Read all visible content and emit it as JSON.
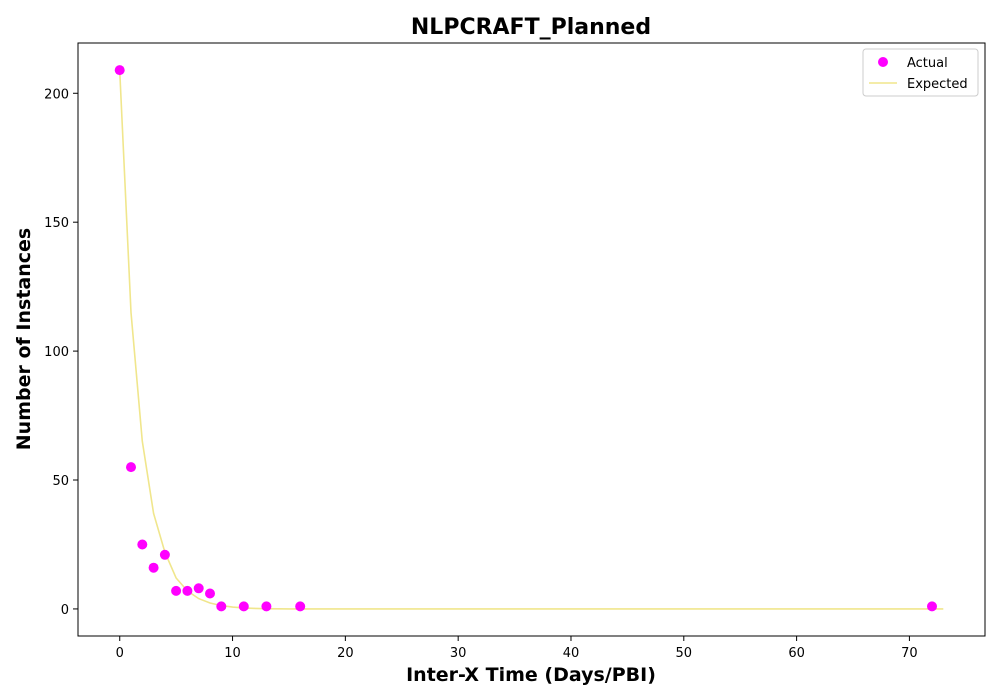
{
  "chart_data": {
    "type": "scatter",
    "title": "NLPCRAFT_Planned",
    "xlabel": "Inter-X Time (Days/PBI)",
    "ylabel": "Number of Instances",
    "xlim": [
      -3.7,
      76.7
    ],
    "ylim": [
      -10.5,
      219.5
    ],
    "xticks": [
      0,
      10,
      20,
      30,
      40,
      50,
      60,
      70
    ],
    "yticks": [
      0,
      50,
      100,
      150,
      200
    ],
    "grid": false,
    "legend_position": "top-right",
    "series": [
      {
        "name": "Actual",
        "kind": "scatter",
        "color": "#ff00ff",
        "x": [
          0,
          1,
          2,
          3,
          4,
          5,
          6,
          7,
          8,
          9,
          11,
          13,
          16,
          72
        ],
        "y": [
          209,
          55,
          25,
          16,
          21,
          7,
          7,
          8,
          6,
          1,
          1,
          1,
          1,
          1
        ]
      },
      {
        "name": "Expected",
        "kind": "line",
        "color": "#f0e68c",
        "x": [
          0,
          1,
          2,
          3,
          4,
          5,
          6,
          7,
          8,
          9,
          10,
          11,
          12,
          13,
          14,
          15,
          16,
          18,
          20,
          25,
          30,
          40,
          50,
          60,
          70,
          73
        ],
        "y": [
          209,
          115,
          65,
          37,
          22,
          12,
          7,
          4,
          2.3,
          1.3,
          0.7,
          0.4,
          0.2,
          0.1,
          0.05,
          0.03,
          0.02,
          0,
          0,
          0,
          0,
          0,
          0,
          0,
          0,
          0
        ]
      }
    ]
  }
}
